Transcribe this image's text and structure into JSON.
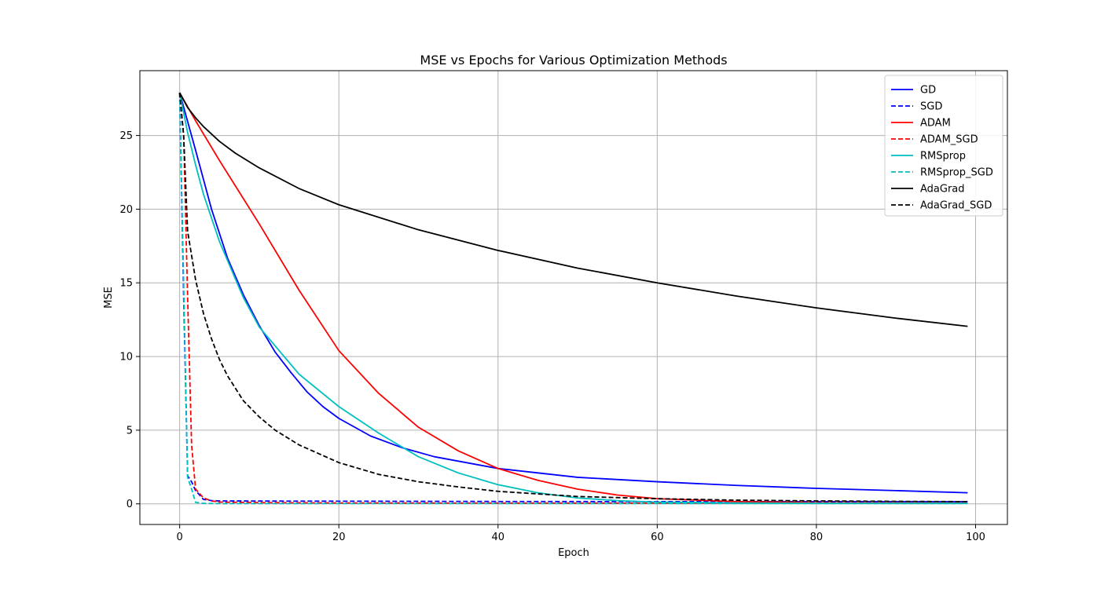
{
  "chart_data": {
    "type": "line",
    "title": "MSE vs Epochs for Various Optimization Methods",
    "xlabel": "Epoch",
    "ylabel": "MSE",
    "xlim": [
      -5,
      104
    ],
    "ylim": [
      -1.4,
      29.4
    ],
    "xticks": [
      0,
      20,
      40,
      60,
      80,
      100
    ],
    "yticks": [
      0,
      5,
      10,
      15,
      20,
      25
    ],
    "grid": true,
    "legend_position": "upper right",
    "series": [
      {
        "name": "GD",
        "color": "#0000ff",
        "dash": "solid",
        "x": [
          0,
          2,
          4,
          6,
          8,
          10,
          12,
          14,
          16,
          18,
          20,
          24,
          28,
          32,
          36,
          40,
          45,
          50,
          60,
          70,
          80,
          90,
          99
        ],
        "y": [
          27.9,
          24.0,
          20.0,
          16.7,
          14.2,
          12.1,
          10.3,
          8.9,
          7.6,
          6.6,
          5.8,
          4.6,
          3.8,
          3.2,
          2.8,
          2.4,
          2.1,
          1.8,
          1.5,
          1.25,
          1.05,
          0.9,
          0.75
        ]
      },
      {
        "name": "SGD",
        "color": "#0000ff",
        "dash": "dashed",
        "x": [
          0,
          0.5,
          1,
          1.5,
          2,
          3,
          4,
          5,
          10,
          20,
          40,
          60,
          80,
          99
        ],
        "y": [
          27.9,
          14.0,
          1.9,
          1.5,
          0.9,
          0.3,
          0.22,
          0.2,
          0.19,
          0.18,
          0.16,
          0.15,
          0.15,
          0.15
        ]
      },
      {
        "name": "ADAM",
        "color": "#ff0000",
        "dash": "solid",
        "x": [
          0,
          2,
          5,
          10,
          15,
          20,
          25,
          30,
          35,
          40,
          45,
          50,
          55,
          60,
          70,
          80,
          90,
          99
        ],
        "y": [
          27.9,
          26.0,
          23.3,
          19.0,
          14.5,
          10.4,
          7.5,
          5.2,
          3.6,
          2.4,
          1.6,
          1.0,
          0.6,
          0.35,
          0.15,
          0.08,
          0.05,
          0.04
        ]
      },
      {
        "name": "ADAM_SGD",
        "color": "#ff0000",
        "dash": "dashed",
        "x": [
          0,
          0.5,
          1,
          1.5,
          2,
          3,
          4,
          5,
          10,
          20,
          40,
          60,
          80,
          99
        ],
        "y": [
          27.9,
          25.0,
          14.0,
          4.0,
          1.0,
          0.4,
          0.2,
          0.12,
          0.08,
          0.06,
          0.05,
          0.05,
          0.05,
          0.05
        ]
      },
      {
        "name": "RMSprop",
        "color": "#00bfbf",
        "dash": "solid",
        "x": [
          0,
          1,
          2,
          3,
          5,
          8,
          10,
          15,
          20,
          25,
          30,
          35,
          40,
          45,
          50,
          55,
          60,
          70,
          80,
          90,
          99
        ],
        "y": [
          27.9,
          25.2,
          23.0,
          21.0,
          17.8,
          14.0,
          12.0,
          8.8,
          6.6,
          4.8,
          3.2,
          2.1,
          1.3,
          0.75,
          0.4,
          0.22,
          0.12,
          0.06,
          0.04,
          0.03,
          0.03
        ]
      },
      {
        "name": "RMSprop_SGD",
        "color": "#00bfbf",
        "dash": "dashed",
        "x": [
          0,
          0.5,
          1,
          1.5,
          2,
          3,
          5,
          10,
          20,
          40,
          60,
          80,
          99
        ],
        "y": [
          27.9,
          15.0,
          1.8,
          1.0,
          0.1,
          0.03,
          0.02,
          0.02,
          0.02,
          0.02,
          0.02,
          0.02,
          0.02
        ]
      },
      {
        "name": "AdaGrad",
        "color": "#000000",
        "dash": "solid",
        "x": [
          0,
          1,
          2,
          3,
          5,
          7,
          10,
          15,
          20,
          30,
          40,
          50,
          60,
          70,
          80,
          90,
          99
        ],
        "y": [
          27.9,
          26.9,
          26.2,
          25.6,
          24.6,
          23.8,
          22.8,
          21.4,
          20.3,
          18.6,
          17.2,
          16.0,
          15.0,
          14.1,
          13.3,
          12.6,
          12.05
        ]
      },
      {
        "name": "AdaGrad_SGD",
        "color": "#000000",
        "dash": "dashed",
        "x": [
          0,
          0.5,
          1,
          2,
          3,
          4,
          5,
          6,
          8,
          10,
          12,
          15,
          20,
          25,
          30,
          35,
          40,
          50,
          60,
          70,
          80,
          90,
          99
        ],
        "y": [
          27.9,
          25.0,
          18.5,
          15.2,
          12.9,
          11.2,
          9.8,
          8.7,
          7.0,
          5.9,
          5.0,
          4.0,
          2.8,
          2.0,
          1.5,
          1.15,
          0.85,
          0.5,
          0.35,
          0.25,
          0.2,
          0.17,
          0.15
        ]
      }
    ]
  }
}
